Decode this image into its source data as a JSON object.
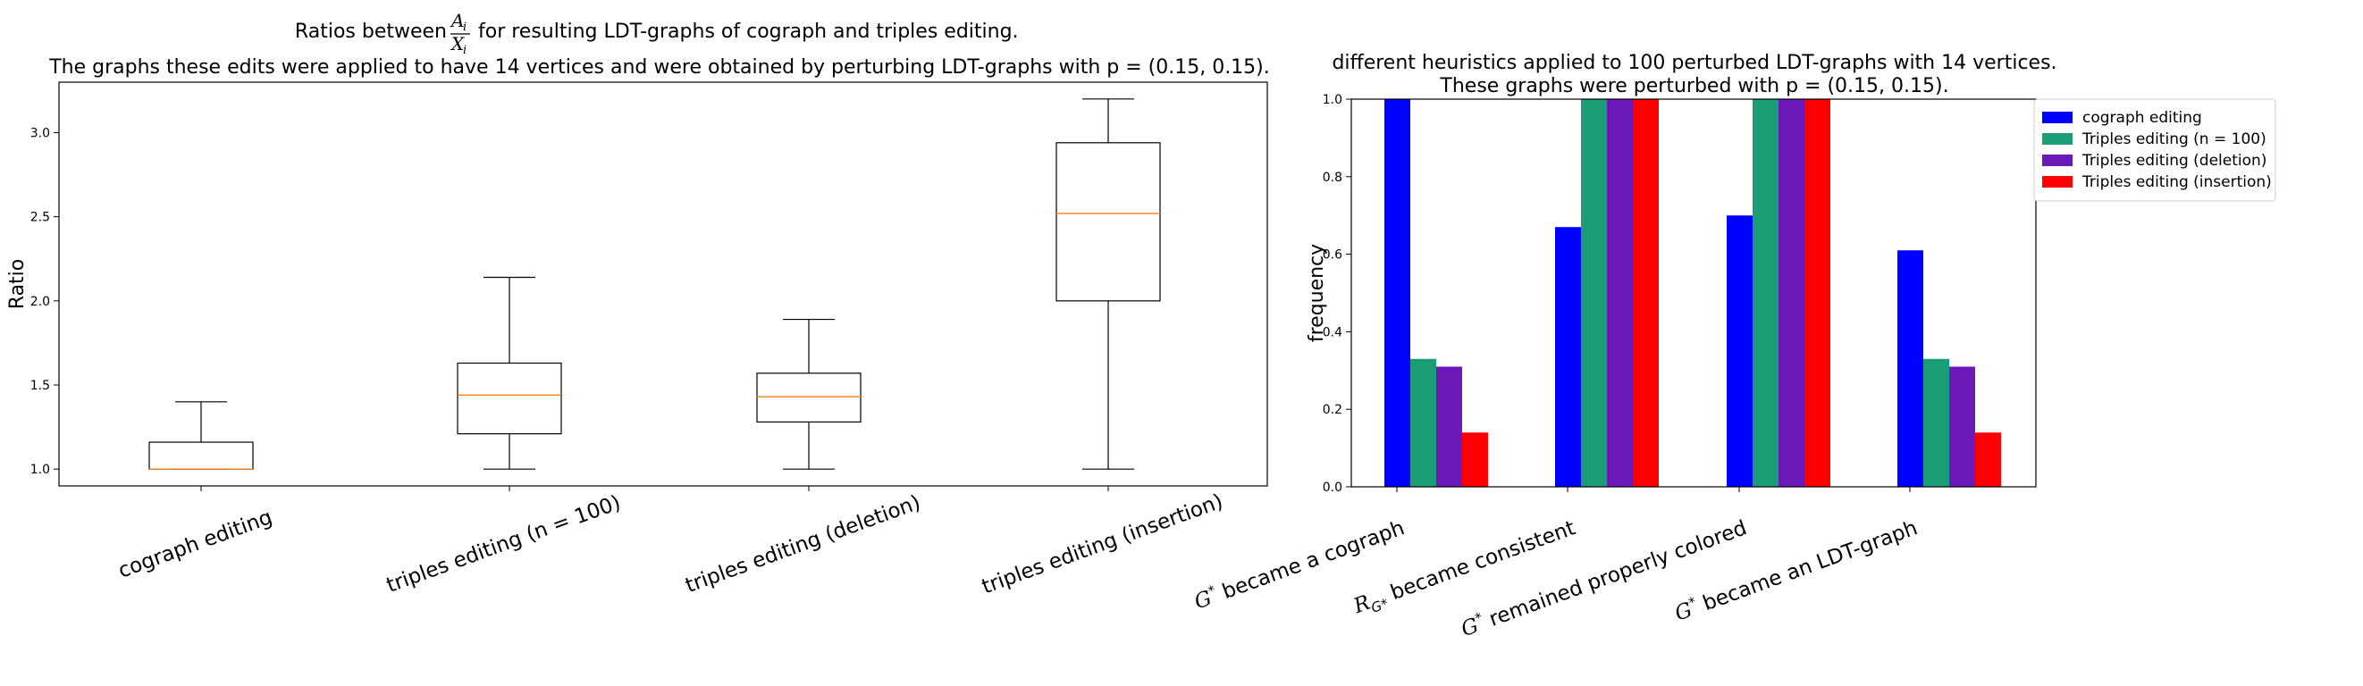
{
  "chart_data": [
    {
      "type": "box",
      "title_prefix": "Ratios between",
      "title_frac_num": "A",
      "title_frac_den": "X",
      "title_frac_sub": "i",
      "title_suffix": "for resulting LDT-graphs of cograph and triples editing.",
      "subtitle": "The graphs these edits were applied to have 14 vertices and were obtained by perturbing LDT-graphs with p = (0.15, 0.15).",
      "ylabel": "Ratio",
      "ylim": [
        0.9,
        3.3
      ],
      "yticks": [
        "1.0",
        "1.5",
        "2.0",
        "2.5",
        "3.0"
      ],
      "categories": [
        "cograph editing",
        "triples editing (n = 100)",
        "triples editing (deletion)",
        "triples editing (insertion)"
      ],
      "boxes": [
        {
          "whislo": 1.0,
          "q1": 1.0,
          "med": 1.0,
          "q3": 1.16,
          "whishi": 1.4
        },
        {
          "whislo": 1.0,
          "q1": 1.21,
          "med": 1.44,
          "q3": 1.63,
          "whishi": 2.14
        },
        {
          "whislo": 1.0,
          "q1": 1.28,
          "med": 1.43,
          "q3": 1.57,
          "whishi": 1.89
        },
        {
          "whislo": 1.0,
          "q1": 2.0,
          "med": 2.52,
          "q3": 2.94,
          "whishi": 3.2
        }
      ],
      "box_color": "#000000",
      "median_color": "#ff7f0e"
    },
    {
      "type": "bar",
      "title": "different heuristics applied to 100 perturbed LDT-graphs with 14 vertices.",
      "subtitle": "These graphs were perturbed with p = (0.15, 0.15).",
      "ylabel": "frequency",
      "ylim": [
        0.0,
        1.0
      ],
      "yticks": [
        "0.0",
        "0.2",
        "0.4",
        "0.6",
        "0.8",
        "1.0"
      ],
      "categories": [
        "G* became a cograph",
        "R_G* became consistent",
        "G* remained properly colored",
        "G* became an LDT-graph"
      ],
      "legend_position": "outside-top-right",
      "series": [
        {
          "name": "cograph editing",
          "color": "#0000ff",
          "values": [
            1.0,
            0.67,
            0.7,
            0.61
          ]
        },
        {
          "name": "Triples editing (n = 100)",
          "color": "#1b9e77",
          "values": [
            0.33,
            1.0,
            1.0,
            0.33
          ]
        },
        {
          "name": "Triples editing (deletion)",
          "color": "#6a1ab8",
          "values": [
            0.31,
            1.0,
            1.0,
            0.31
          ]
        },
        {
          "name": "Triples editing (insertion)",
          "color": "#ff0000",
          "values": [
            0.14,
            1.0,
            1.0,
            0.14
          ]
        }
      ]
    }
  ]
}
